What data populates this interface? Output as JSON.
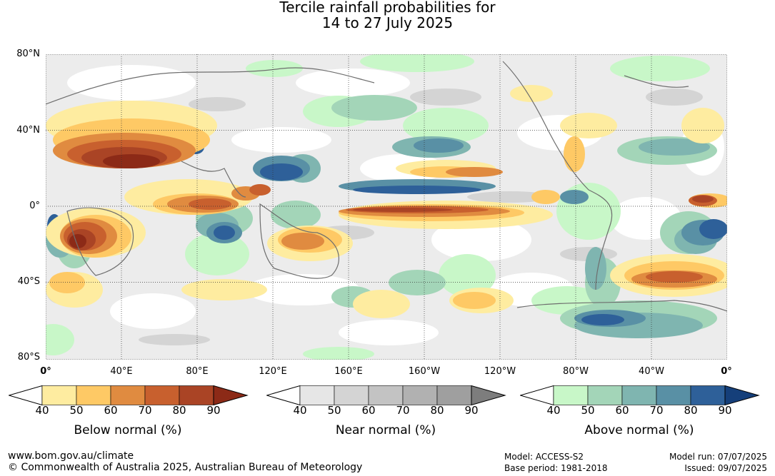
{
  "title_line1": "Tercile rainfall probabilities for",
  "title_line2": "14 to 27 July 2025",
  "lat_labels": [
    "80°N",
    "40°N",
    "0°",
    "40°S",
    "80°S"
  ],
  "lon_labels": [
    "0°",
    "40°E",
    "80°E",
    "120°E",
    "160°E",
    "160°W",
    "120°W",
    "80°W",
    "40°W",
    "0°"
  ],
  "legends": [
    {
      "caption": "Below normal (%)",
      "ticks": [
        "40",
        "50",
        "60",
        "70",
        "80",
        "90"
      ],
      "colors": [
        "#ffffff",
        "#feeca0",
        "#fec965",
        "#e08b40",
        "#c8602e",
        "#aa4425",
        "#8c2a17"
      ]
    },
    {
      "caption": "Near normal (%)",
      "ticks": [
        "40",
        "50",
        "60",
        "70",
        "80",
        "90"
      ],
      "colors": [
        "#ffffff",
        "#e6e6e6",
        "#d4d4d4",
        "#c3c3c3",
        "#b1b1b1",
        "#9f9f9f",
        "#7d7d7d"
      ]
    },
    {
      "caption": "Above normal (%)",
      "ticks": [
        "40",
        "50",
        "60",
        "70",
        "80",
        "90"
      ],
      "colors": [
        "#ffffff",
        "#c8f7c8",
        "#a3d5b8",
        "#7fb5b0",
        "#5990a5",
        "#2e6099",
        "#153f7a"
      ]
    }
  ],
  "footer": {
    "website": "www.bom.gov.au/climate",
    "copyright": "© Commonwealth of Australia 2025, Australian Bureau of Meteorology",
    "model": "Model: ACCESS-S2",
    "base_period": "Base period: 1981-2018",
    "model_run": "Model run: 07/07/2025",
    "issued": "Issued: 09/07/2025"
  }
}
